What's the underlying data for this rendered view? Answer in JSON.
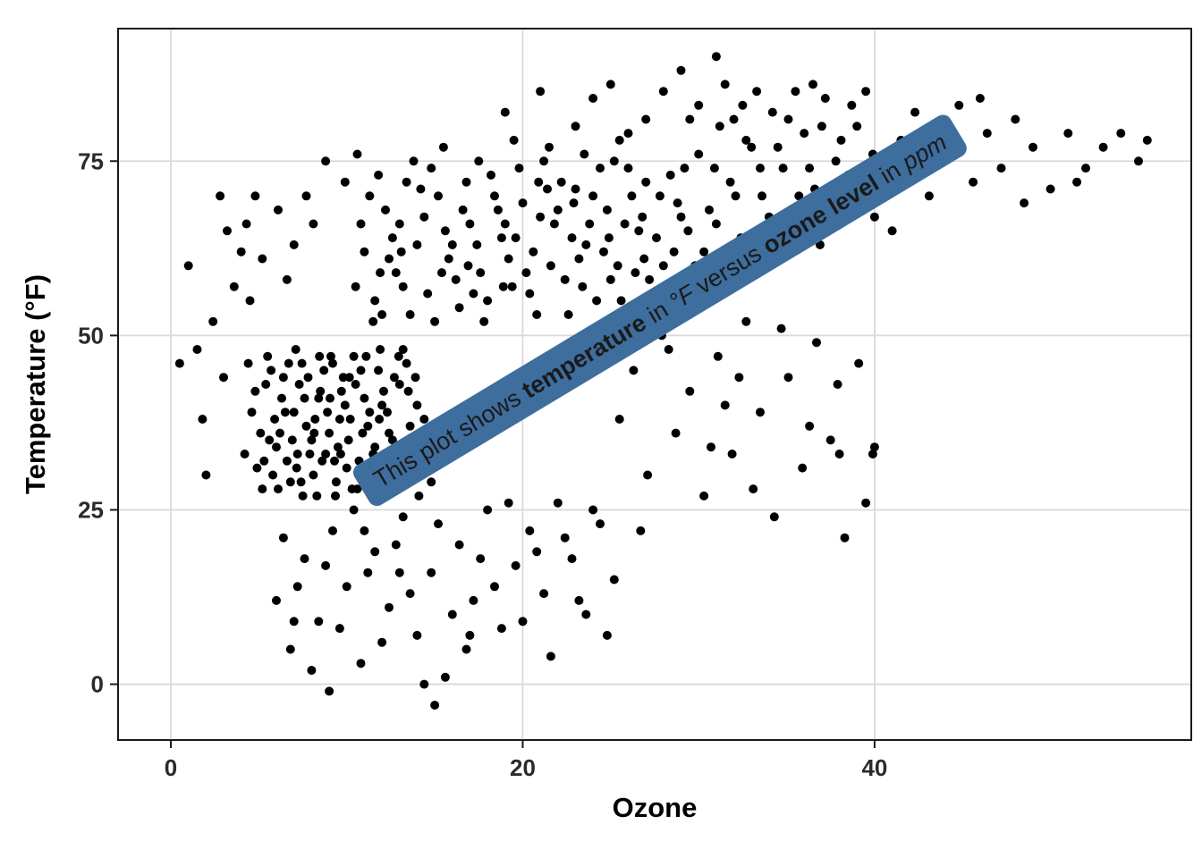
{
  "chart_data": {
    "type": "scatter",
    "title": "",
    "xlabel": "Ozone",
    "ylabel": "Temperature (°F)",
    "xlim": [
      -3,
      58
    ],
    "ylim": [
      -8,
      94
    ],
    "x_ticks": [
      0,
      20,
      40
    ],
    "y_ticks": [
      0,
      25,
      50,
      75
    ],
    "grid": true,
    "legend": "none",
    "background": "#ffffff",
    "gridline_color": "#d9d9d9",
    "panel_border_color": "#1a1a1a",
    "point_color": "#000000",
    "point_radius": 5,
    "annotation": {
      "x": 27.8,
      "y": 53.6,
      "angle_deg": -31,
      "fill": "#3d6e9e",
      "text_color": "#ffffff",
      "segments": [
        {
          "text": "This plot shows ",
          "bold": false,
          "italic": false
        },
        {
          "text": "temperature",
          "bold": true,
          "italic": false
        },
        {
          "text": " in ",
          "bold": false,
          "italic": false
        },
        {
          "text": "°F",
          "bold": false,
          "italic": true
        },
        {
          "text": " versus ",
          "bold": false,
          "italic": false
        },
        {
          "text": "ozone level",
          "bold": true,
          "italic": false
        },
        {
          "text": " in ",
          "bold": false,
          "italic": false
        },
        {
          "text": "ppm",
          "bold": false,
          "italic": true
        }
      ]
    },
    "points": [
      [
        4.2,
        33
      ],
      [
        5.1,
        36
      ],
      [
        5.8,
        30
      ],
      [
        6.3,
        41
      ],
      [
        6.9,
        35
      ],
      [
        7.4,
        29
      ],
      [
        7.8,
        44
      ],
      [
        8.2,
        38
      ],
      [
        8.6,
        32
      ],
      [
        9.1,
        47
      ],
      [
        9.5,
        34
      ],
      [
        9.9,
        40
      ],
      [
        10.3,
        28
      ],
      [
        10.8,
        45
      ],
      [
        11.2,
        37
      ],
      [
        11.7,
        31
      ],
      [
        12.1,
        42
      ],
      [
        12.6,
        35
      ],
      [
        13.2,
        48
      ],
      [
        13.8,
        33
      ],
      [
        4.6,
        39
      ],
      [
        5.4,
        43
      ],
      [
        6.1,
        28
      ],
      [
        6.7,
        46
      ],
      [
        7.2,
        33
      ],
      [
        7.7,
        37
      ],
      [
        8.1,
        30
      ],
      [
        8.5,
        42
      ],
      [
        9,
        36
      ],
      [
        9.4,
        29
      ],
      [
        9.8,
        44
      ],
      [
        10.2,
        38
      ],
      [
        10.7,
        32
      ],
      [
        11.1,
        47
      ],
      [
        11.6,
        34
      ],
      [
        12,
        40
      ],
      [
        12.5,
        30
      ],
      [
        13,
        43
      ],
      [
        13.6,
        37
      ],
      [
        14.2,
        31
      ],
      [
        4.9,
        31
      ],
      [
        5.6,
        35
      ],
      [
        6.4,
        44
      ],
      [
        7,
        39
      ],
      [
        7.5,
        27
      ],
      [
        8,
        35
      ],
      [
        8.4,
        41
      ],
      [
        8.8,
        33
      ],
      [
        9.2,
        46
      ],
      [
        9.6,
        38
      ],
      [
        10,
        31
      ],
      [
        10.5,
        43
      ],
      [
        10.9,
        36
      ],
      [
        11.4,
        29
      ],
      [
        11.8,
        45
      ],
      [
        12.3,
        39
      ],
      [
        12.8,
        33
      ],
      [
        13.4,
        46
      ],
      [
        14,
        40
      ],
      [
        14.6,
        35
      ],
      [
        4.4,
        46
      ],
      [
        5.2,
        28
      ],
      [
        5.9,
        38
      ],
      [
        6.6,
        32
      ],
      [
        7.1,
        48
      ],
      [
        7.6,
        41
      ],
      [
        8.3,
        27
      ],
      [
        8.7,
        45
      ],
      [
        9.3,
        32
      ],
      [
        9.7,
        42
      ],
      [
        10.1,
        35
      ],
      [
        10.6,
        28
      ],
      [
        11,
        41
      ],
      [
        11.5,
        33
      ],
      [
        11.9,
        48
      ],
      [
        12.4,
        36
      ],
      [
        12.9,
        29
      ],
      [
        13.5,
        42
      ],
      [
        14.4,
        38
      ],
      [
        15,
        32
      ],
      [
        4.8,
        42
      ],
      [
        5.5,
        47
      ],
      [
        6.2,
        36
      ],
      [
        6.8,
        29
      ],
      [
        7.3,
        43
      ],
      [
        7.9,
        33
      ],
      [
        8.9,
        39
      ],
      [
        9.35,
        27
      ],
      [
        10.4,
        47
      ],
      [
        11.3,
        39
      ],
      [
        12.2,
        27
      ],
      [
        12.7,
        44
      ],
      [
        13.3,
        30
      ],
      [
        13.9,
        44
      ],
      [
        14.8,
        29
      ],
      [
        5.3,
        32
      ],
      [
        6.5,
        39
      ],
      [
        7.45,
        46
      ],
      [
        8.45,
        47
      ],
      [
        9.65,
        33
      ],
      [
        5.7,
        45
      ],
      [
        6.0,
        34
      ],
      [
        7.15,
        31
      ],
      [
        8.15,
        36
      ],
      [
        9.05,
        41
      ],
      [
        10.15,
        44
      ],
      [
        10.95,
        30
      ],
      [
        11.85,
        38
      ],
      [
        12.95,
        47
      ],
      [
        14.1,
        27
      ],
      [
        10.5,
        57
      ],
      [
        11,
        62
      ],
      [
        11.6,
        55
      ],
      [
        12.2,
        68
      ],
      [
        12.8,
        59
      ],
      [
        13.4,
        72
      ],
      [
        14,
        63
      ],
      [
        14.6,
        56
      ],
      [
        15.2,
        70
      ],
      [
        15.8,
        61
      ],
      [
        16.4,
        54
      ],
      [
        17,
        66
      ],
      [
        17.6,
        59
      ],
      [
        18.2,
        73
      ],
      [
        18.8,
        64
      ],
      [
        19.4,
        57
      ],
      [
        20,
        69
      ],
      [
        20.6,
        62
      ],
      [
        21.2,
        75
      ],
      [
        21.8,
        66
      ],
      [
        22.4,
        58
      ],
      [
        23,
        71
      ],
      [
        23.6,
        63
      ],
      [
        24.2,
        55
      ],
      [
        24.8,
        68
      ],
      [
        25.4,
        60
      ],
      [
        26,
        74
      ],
      [
        26.6,
        65
      ],
      [
        27.2,
        58
      ],
      [
        27.8,
        70
      ],
      [
        11.3,
        70
      ],
      [
        12,
        53
      ],
      [
        12.6,
        64
      ],
      [
        13.2,
        57
      ],
      [
        13.8,
        75
      ],
      [
        14.4,
        67
      ],
      [
        15,
        52
      ],
      [
        15.6,
        65
      ],
      [
        16.2,
        58
      ],
      [
        16.8,
        72
      ],
      [
        17.4,
        63
      ],
      [
        18,
        55
      ],
      [
        18.6,
        68
      ],
      [
        19.2,
        61
      ],
      [
        19.8,
        74
      ],
      [
        20.4,
        56
      ],
      [
        21,
        67
      ],
      [
        21.6,
        60
      ],
      [
        22.2,
        72
      ],
      [
        22.8,
        64
      ],
      [
        23.4,
        57
      ],
      [
        24,
        70
      ],
      [
        24.6,
        62
      ],
      [
        25.2,
        75
      ],
      [
        25.8,
        66
      ],
      [
        26.4,
        59
      ],
      [
        27,
        72
      ],
      [
        27.6,
        64
      ],
      [
        28.2,
        57
      ],
      [
        28.8,
        69
      ],
      [
        10.8,
        66
      ],
      [
        11.9,
        59
      ],
      [
        13,
        66
      ],
      [
        14.2,
        71
      ],
      [
        15.4,
        59
      ],
      [
        16.6,
        68
      ],
      [
        17.8,
        52
      ],
      [
        19,
        66
      ],
      [
        20.2,
        59
      ],
      [
        21.4,
        71
      ],
      [
        22.6,
        53
      ],
      [
        23.8,
        66
      ],
      [
        25,
        58
      ],
      [
        26.2,
        70
      ],
      [
        27.4,
        54
      ],
      [
        28.6,
        62
      ],
      [
        29.2,
        74
      ],
      [
        29.8,
        60
      ],
      [
        12.4,
        61
      ],
      [
        13.6,
        53
      ],
      [
        14.8,
        74
      ],
      [
        16,
        63
      ],
      [
        17.2,
        56
      ],
      [
        18.4,
        70
      ],
      [
        19.6,
        64
      ],
      [
        20.8,
        53
      ],
      [
        22,
        68
      ],
      [
        23.2,
        61
      ],
      [
        24.4,
        74
      ],
      [
        25.6,
        55
      ],
      [
        26.8,
        67
      ],
      [
        28,
        60
      ],
      [
        29,
        67
      ],
      [
        29.6,
        55
      ],
      [
        15.5,
        77
      ],
      [
        17.5,
        75
      ],
      [
        19.5,
        78
      ],
      [
        21.5,
        77
      ],
      [
        23.5,
        76
      ],
      [
        25.5,
        78
      ],
      [
        16.9,
        60
      ],
      [
        18.9,
        57
      ],
      [
        20.9,
        72
      ],
      [
        22.9,
        69
      ],
      [
        24.9,
        64
      ],
      [
        26.9,
        61
      ],
      [
        28.4,
        73
      ],
      [
        29.4,
        65
      ],
      [
        11.5,
        52
      ],
      [
        13.1,
        62
      ],
      [
        30,
        76
      ],
      [
        30.6,
        68
      ],
      [
        31.2,
        80
      ],
      [
        31.8,
        72
      ],
      [
        32.4,
        64
      ],
      [
        33,
        77
      ],
      [
        33.6,
        70
      ],
      [
        34.2,
        82
      ],
      [
        34.8,
        74
      ],
      [
        35.4,
        66
      ],
      [
        36,
        79
      ],
      [
        36.6,
        71
      ],
      [
        37.2,
        84
      ],
      [
        37.8,
        75
      ],
      [
        38.4,
        68
      ],
      [
        39,
        80
      ],
      [
        39.6,
        73
      ],
      [
        30.3,
        62
      ],
      [
        31.5,
        86
      ],
      [
        32.7,
        78
      ],
      [
        33.9,
        63
      ],
      [
        35.1,
        81
      ],
      [
        36.3,
        74
      ],
      [
        37.5,
        67
      ],
      [
        38.7,
        83
      ],
      [
        39.9,
        76
      ],
      [
        30.9,
        74
      ],
      [
        32.1,
        70
      ],
      [
        33.3,
        85
      ],
      [
        34.5,
        77
      ],
      [
        35.7,
        70
      ],
      [
        36.9,
        63
      ],
      [
        38.1,
        78
      ],
      [
        39.3,
        70
      ],
      [
        31,
        66
      ],
      [
        33.5,
        74
      ],
      [
        35.5,
        85
      ],
      [
        37,
        80
      ],
      [
        38.5,
        73
      ],
      [
        40,
        67
      ],
      [
        29.5,
        81
      ],
      [
        32.5,
        83
      ],
      [
        34,
        67
      ],
      [
        36.5,
        86
      ],
      [
        39.5,
        85
      ],
      [
        41.5,
        78
      ],
      [
        42.3,
        82
      ],
      [
        43.1,
        70
      ],
      [
        44,
        76
      ],
      [
        44.8,
        83
      ],
      [
        45.6,
        72
      ],
      [
        46.4,
        79
      ],
      [
        47.2,
        74
      ],
      [
        48,
        81
      ],
      [
        49,
        77
      ],
      [
        50,
        71
      ],
      [
        51,
        79
      ],
      [
        52,
        74
      ],
      [
        53,
        77
      ],
      [
        54,
        79
      ],
      [
        55,
        75
      ],
      [
        41,
        65
      ],
      [
        43.5,
        80
      ],
      [
        46,
        84
      ],
      [
        48.5,
        69
      ],
      [
        51.5,
        72
      ],
      [
        55.5,
        78
      ],
      [
        6,
        12
      ],
      [
        6.8,
        5
      ],
      [
        7.6,
        18
      ],
      [
        8.4,
        9
      ],
      [
        9.2,
        22
      ],
      [
        10,
        14
      ],
      [
        10.8,
        3
      ],
      [
        11.6,
        19
      ],
      [
        12.4,
        11
      ],
      [
        13.2,
        24
      ],
      [
        14,
        7
      ],
      [
        14.8,
        16
      ],
      [
        15.6,
        1
      ],
      [
        16.4,
        20
      ],
      [
        17.2,
        12
      ],
      [
        18,
        25
      ],
      [
        18.8,
        8
      ],
      [
        19.6,
        17
      ],
      [
        20.4,
        22
      ],
      [
        21.2,
        13
      ],
      [
        22,
        26
      ],
      [
        22.8,
        18
      ],
      [
        23.6,
        10
      ],
      [
        24.4,
        23
      ],
      [
        25.2,
        15
      ],
      [
        6.4,
        21
      ],
      [
        7.2,
        14
      ],
      [
        8,
        2
      ],
      [
        8.8,
        17
      ],
      [
        9.6,
        8
      ],
      [
        10.4,
        25
      ],
      [
        11.2,
        16
      ],
      [
        12,
        6
      ],
      [
        12.8,
        20
      ],
      [
        13.6,
        13
      ],
      [
        14.4,
        0
      ],
      [
        15.2,
        23
      ],
      [
        16,
        10
      ],
      [
        16.8,
        5
      ],
      [
        17.6,
        18
      ],
      [
        18.4,
        14
      ],
      [
        19.2,
        26
      ],
      [
        20,
        9
      ],
      [
        20.8,
        19
      ],
      [
        21.6,
        4
      ],
      [
        22.4,
        21
      ],
      [
        23.2,
        12
      ],
      [
        24,
        25
      ],
      [
        24.8,
        7
      ],
      [
        7,
        9
      ],
      [
        9,
        -1
      ],
      [
        11,
        22
      ],
      [
        13,
        16
      ],
      [
        15,
        -3
      ],
      [
        17,
        7
      ],
      [
        25.5,
        38
      ],
      [
        26.3,
        45
      ],
      [
        27.1,
        30
      ],
      [
        27.9,
        50
      ],
      [
        28.7,
        36
      ],
      [
        29.5,
        42
      ],
      [
        30.3,
        27
      ],
      [
        31.1,
        47
      ],
      [
        31.9,
        33
      ],
      [
        32.7,
        52
      ],
      [
        33.5,
        39
      ],
      [
        34.3,
        24
      ],
      [
        35.1,
        44
      ],
      [
        35.9,
        31
      ],
      [
        36.7,
        49
      ],
      [
        37.5,
        35
      ],
      [
        38.3,
        21
      ],
      [
        39.1,
        46
      ],
      [
        39.9,
        33
      ],
      [
        26.7,
        22
      ],
      [
        28.3,
        48
      ],
      [
        29.9,
        54
      ],
      [
        31.5,
        40
      ],
      [
        33.1,
        28
      ],
      [
        34.7,
        51
      ],
      [
        36.3,
        37
      ],
      [
        37.9,
        43
      ],
      [
        39.5,
        26
      ],
      [
        30.7,
        34
      ],
      [
        32.3,
        44
      ],
      [
        38,
        33
      ],
      [
        40,
        34
      ],
      [
        0.5,
        46
      ],
      [
        1,
        60
      ],
      [
        1.8,
        38
      ],
      [
        2.4,
        52
      ],
      [
        3,
        44
      ],
      [
        3.6,
        57
      ],
      [
        2,
        30
      ],
      [
        3.2,
        65
      ],
      [
        1.5,
        48
      ],
      [
        2.8,
        70
      ],
      [
        4,
        62
      ],
      [
        4.5,
        55
      ],
      [
        19,
        82
      ],
      [
        21,
        85
      ],
      [
        23,
        80
      ],
      [
        25,
        86
      ],
      [
        27,
        81
      ],
      [
        29,
        88
      ],
      [
        31,
        90
      ],
      [
        24,
        84
      ],
      [
        26,
        79
      ],
      [
        28,
        85
      ],
      [
        30,
        83
      ],
      [
        32,
        81
      ],
      [
        4.3,
        66
      ],
      [
        5.2,
        61
      ],
      [
        6.1,
        68
      ],
      [
        7,
        63
      ],
      [
        8.1,
        66
      ],
      [
        4.8,
        70
      ],
      [
        6.6,
        58
      ],
      [
        7.7,
        70
      ],
      [
        8.8,
        75
      ],
      [
        9.9,
        72
      ],
      [
        10.6,
        76
      ],
      [
        11.8,
        73
      ]
    ]
  }
}
